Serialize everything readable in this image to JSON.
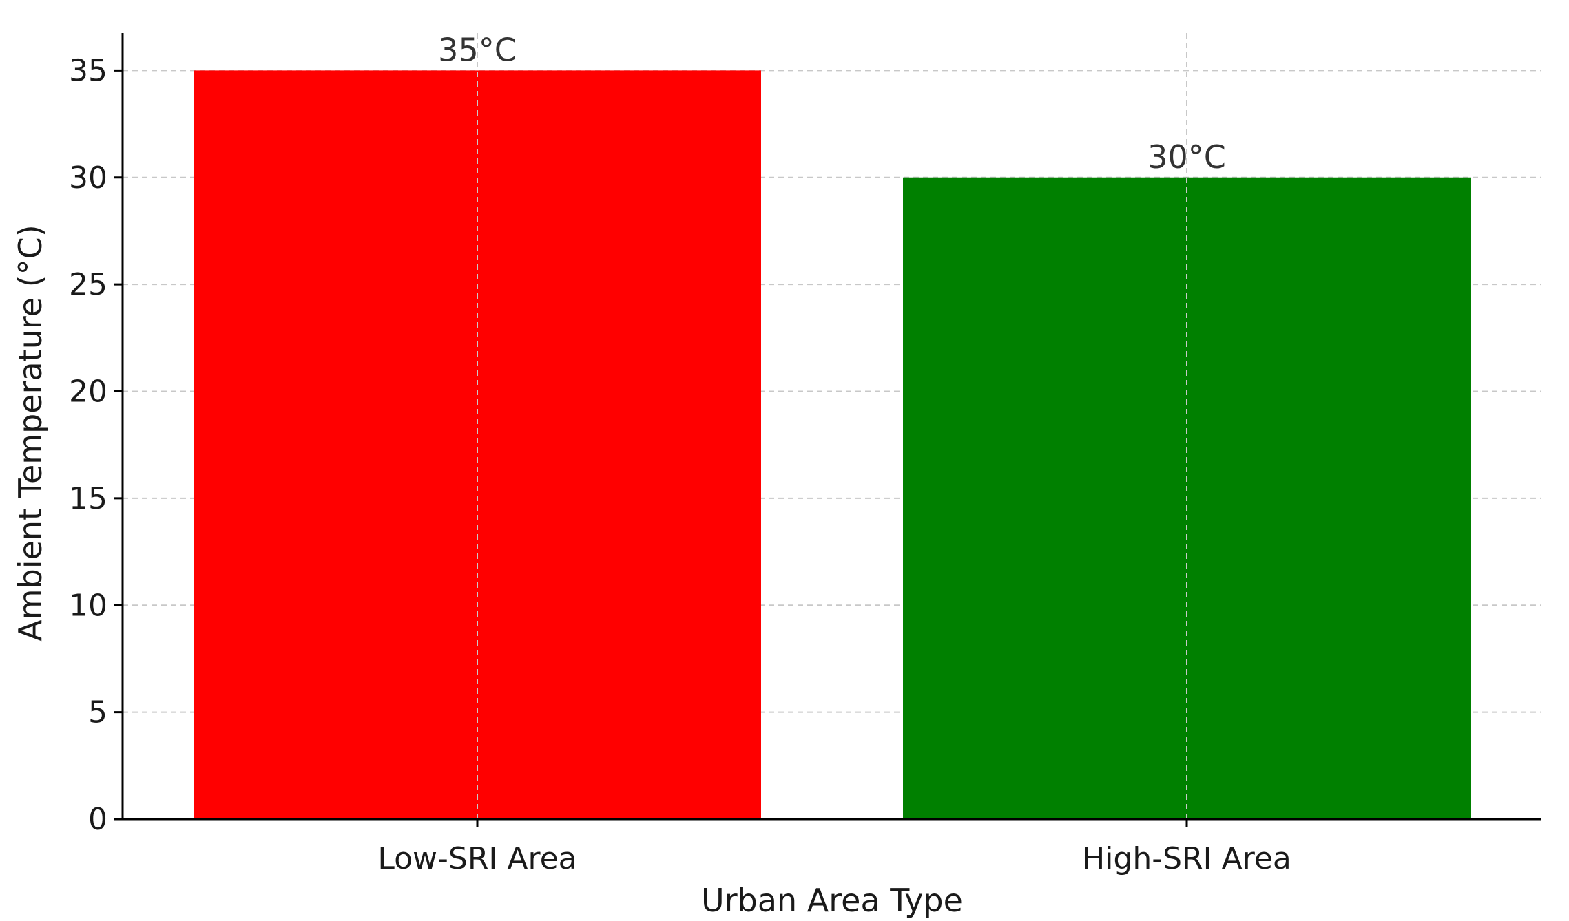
{
  "chart_data": {
    "type": "bar",
    "categories": [
      "Low-SRI Area",
      "High-SRI Area"
    ],
    "values": [
      35,
      30
    ],
    "data_labels": [
      "35°C",
      "30°C"
    ],
    "colors": [
      "#ff0000",
      "#008000"
    ],
    "title": "",
    "xlabel": "Urban Area Type",
    "ylabel": "Ambient Temperature (°C)",
    "ylim": [
      0,
      36.75
    ],
    "yticks": [
      0,
      5,
      10,
      15,
      20,
      25,
      30,
      35
    ],
    "grid": true,
    "legend": "none"
  }
}
